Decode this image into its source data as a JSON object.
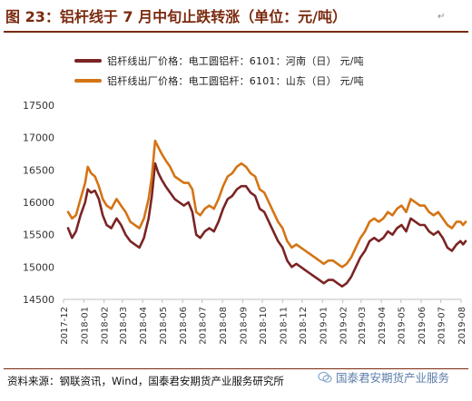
{
  "title": "图 23：铝杆线于 7 月中旬止跌转涨（单位：元/吨）",
  "source": "资料来源：钢联资讯，Wind，国泰君安期货产业服务研究所",
  "watermark": "国泰君安期货产业服务",
  "colors": {
    "henan": "#7b2424",
    "shandong": "#d47414",
    "title": "#7a2a0f"
  },
  "chart_data": {
    "type": "line",
    "title": "铝杆线于 7 月中旬止跌转涨",
    "xlabel": "",
    "ylabel": "",
    "ylim": [
      14500,
      17500
    ],
    "yticks": [
      14500,
      15000,
      15500,
      16000,
      16500,
      17000,
      17500
    ],
    "xticks": [
      "2017-12",
      "2018-01",
      "2018-02",
      "2018-03",
      "2018-04",
      "2018-05",
      "2018-06",
      "2018-07",
      "2018-08",
      "2018-09",
      "2018-10",
      "2018-11",
      "2018-12",
      "2019-01",
      "2019-02",
      "2019-03",
      "2019-04",
      "2019-05",
      "2019-06",
      "2019-07",
      "2019-08"
    ],
    "grid": false,
    "legend_position": "top-left",
    "series": [
      {
        "name": "铝杆线出厂价格：电工圆铝杆：6101：河南（日） 元/吨",
        "color": "#7b2424",
        "points": [
          [
            "2017-12-08",
            15600
          ],
          [
            "2017-12-14",
            15450
          ],
          [
            "2017-12-20",
            15550
          ],
          [
            "2017-12-27",
            15800
          ],
          [
            "2018-01-03",
            16000
          ],
          [
            "2018-01-07",
            16200
          ],
          [
            "2018-01-12",
            16150
          ],
          [
            "2018-01-18",
            16180
          ],
          [
            "2018-01-24",
            16050
          ],
          [
            "2018-01-30",
            15800
          ],
          [
            "2018-02-05",
            15650
          ],
          [
            "2018-02-12",
            15600
          ],
          [
            "2018-02-20",
            15750
          ],
          [
            "2018-02-27",
            15650
          ],
          [
            "2018-03-06",
            15500
          ],
          [
            "2018-03-13",
            15400
          ],
          [
            "2018-03-20",
            15350
          ],
          [
            "2018-03-27",
            15300
          ],
          [
            "2018-04-03",
            15450
          ],
          [
            "2018-04-10",
            15750
          ],
          [
            "2018-04-15",
            16100
          ],
          [
            "2018-04-20",
            16600
          ],
          [
            "2018-04-25",
            16450
          ],
          [
            "2018-04-30",
            16350
          ],
          [
            "2018-05-06",
            16250
          ],
          [
            "2018-05-13",
            16150
          ],
          [
            "2018-05-20",
            16050
          ],
          [
            "2018-05-27",
            16000
          ],
          [
            "2018-06-03",
            15950
          ],
          [
            "2018-06-10",
            16000
          ],
          [
            "2018-06-16",
            15850
          ],
          [
            "2018-06-22",
            15500
          ],
          [
            "2018-06-28",
            15450
          ],
          [
            "2018-07-05",
            15550
          ],
          [
            "2018-07-12",
            15600
          ],
          [
            "2018-07-19",
            15550
          ],
          [
            "2018-07-26",
            15700
          ],
          [
            "2018-08-02",
            15900
          ],
          [
            "2018-08-09",
            16050
          ],
          [
            "2018-08-16",
            16100
          ],
          [
            "2018-08-23",
            16200
          ],
          [
            "2018-08-30",
            16250
          ],
          [
            "2018-09-06",
            16250
          ],
          [
            "2018-09-13",
            16150
          ],
          [
            "2018-09-20",
            16100
          ],
          [
            "2018-09-27",
            15900
          ],
          [
            "2018-10-04",
            15850
          ],
          [
            "2018-10-11",
            15700
          ],
          [
            "2018-10-18",
            15550
          ],
          [
            "2018-10-25",
            15400
          ],
          [
            "2018-11-01",
            15300
          ],
          [
            "2018-11-08",
            15100
          ],
          [
            "2018-11-15",
            15000
          ],
          [
            "2018-11-22",
            15050
          ],
          [
            "2018-11-29",
            15000
          ],
          [
            "2018-12-06",
            14950
          ],
          [
            "2018-12-13",
            14900
          ],
          [
            "2018-12-20",
            14850
          ],
          [
            "2018-12-27",
            14800
          ],
          [
            "2019-01-03",
            14750
          ],
          [
            "2019-01-10",
            14800
          ],
          [
            "2019-01-17",
            14800
          ],
          [
            "2019-01-24",
            14750
          ],
          [
            "2019-01-31",
            14700
          ],
          [
            "2019-02-07",
            14750
          ],
          [
            "2019-02-14",
            14850
          ],
          [
            "2019-02-21",
            15000
          ],
          [
            "2019-02-28",
            15150
          ],
          [
            "2019-03-07",
            15250
          ],
          [
            "2019-03-14",
            15400
          ],
          [
            "2019-03-21",
            15450
          ],
          [
            "2019-03-28",
            15400
          ],
          [
            "2019-04-04",
            15450
          ],
          [
            "2019-04-11",
            15550
          ],
          [
            "2019-04-18",
            15500
          ],
          [
            "2019-04-25",
            15600
          ],
          [
            "2019-05-02",
            15650
          ],
          [
            "2019-05-09",
            15550
          ],
          [
            "2019-05-16",
            15750
          ],
          [
            "2019-05-23",
            15700
          ],
          [
            "2019-05-30",
            15650
          ],
          [
            "2019-06-06",
            15650
          ],
          [
            "2019-06-13",
            15550
          ],
          [
            "2019-06-20",
            15500
          ],
          [
            "2019-06-27",
            15550
          ],
          [
            "2019-07-04",
            15450
          ],
          [
            "2019-07-11",
            15300
          ],
          [
            "2019-07-18",
            15250
          ],
          [
            "2019-07-25",
            15350
          ],
          [
            "2019-07-31",
            15400
          ],
          [
            "2019-08-04",
            15350
          ],
          [
            "2019-08-08",
            15400
          ]
        ]
      },
      {
        "name": "铝杆线出厂价格：电工圆铝杆：6101：山东（日） 元/吨",
        "color": "#d47414",
        "points": [
          [
            "2017-12-08",
            15850
          ],
          [
            "2017-12-14",
            15750
          ],
          [
            "2017-12-20",
            15800
          ],
          [
            "2017-12-27",
            16050
          ],
          [
            "2018-01-03",
            16300
          ],
          [
            "2018-01-07",
            16550
          ],
          [
            "2018-01-12",
            16450
          ],
          [
            "2018-01-18",
            16400
          ],
          [
            "2018-01-24",
            16250
          ],
          [
            "2018-01-30",
            16050
          ],
          [
            "2018-02-05",
            15950
          ],
          [
            "2018-02-12",
            15900
          ],
          [
            "2018-02-20",
            16050
          ],
          [
            "2018-02-27",
            15950
          ],
          [
            "2018-03-06",
            15850
          ],
          [
            "2018-03-13",
            15700
          ],
          [
            "2018-03-20",
            15650
          ],
          [
            "2018-03-27",
            15600
          ],
          [
            "2018-04-03",
            15750
          ],
          [
            "2018-04-10",
            16050
          ],
          [
            "2018-04-15",
            16400
          ],
          [
            "2018-04-20",
            16950
          ],
          [
            "2018-04-25",
            16850
          ],
          [
            "2018-04-30",
            16750
          ],
          [
            "2018-05-06",
            16650
          ],
          [
            "2018-05-13",
            16550
          ],
          [
            "2018-05-20",
            16400
          ],
          [
            "2018-05-27",
            16350
          ],
          [
            "2018-06-03",
            16300
          ],
          [
            "2018-06-10",
            16300
          ],
          [
            "2018-06-16",
            16200
          ],
          [
            "2018-06-22",
            15850
          ],
          [
            "2018-06-28",
            15800
          ],
          [
            "2018-07-05",
            15900
          ],
          [
            "2018-07-12",
            15950
          ],
          [
            "2018-07-19",
            15900
          ],
          [
            "2018-07-26",
            16050
          ],
          [
            "2018-08-02",
            16250
          ],
          [
            "2018-08-09",
            16400
          ],
          [
            "2018-08-16",
            16450
          ],
          [
            "2018-08-23",
            16550
          ],
          [
            "2018-08-30",
            16600
          ],
          [
            "2018-09-06",
            16550
          ],
          [
            "2018-09-13",
            16450
          ],
          [
            "2018-09-20",
            16400
          ],
          [
            "2018-09-27",
            16200
          ],
          [
            "2018-10-04",
            16150
          ],
          [
            "2018-10-11",
            16000
          ],
          [
            "2018-10-18",
            15850
          ],
          [
            "2018-10-25",
            15700
          ],
          [
            "2018-11-01",
            15600
          ],
          [
            "2018-11-08",
            15400
          ],
          [
            "2018-11-15",
            15300
          ],
          [
            "2018-11-22",
            15350
          ],
          [
            "2018-11-29",
            15300
          ],
          [
            "2018-12-06",
            15250
          ],
          [
            "2018-12-13",
            15200
          ],
          [
            "2018-12-20",
            15150
          ],
          [
            "2018-12-27",
            15100
          ],
          [
            "2019-01-03",
            15050
          ],
          [
            "2019-01-10",
            15100
          ],
          [
            "2019-01-17",
            15100
          ],
          [
            "2019-01-24",
            15050
          ],
          [
            "2019-01-31",
            15000
          ],
          [
            "2019-02-07",
            15050
          ],
          [
            "2019-02-14",
            15150
          ],
          [
            "2019-02-21",
            15300
          ],
          [
            "2019-02-28",
            15450
          ],
          [
            "2019-03-07",
            15550
          ],
          [
            "2019-03-14",
            15700
          ],
          [
            "2019-03-21",
            15750
          ],
          [
            "2019-03-28",
            15700
          ],
          [
            "2019-04-04",
            15750
          ],
          [
            "2019-04-11",
            15850
          ],
          [
            "2019-04-18",
            15800
          ],
          [
            "2019-04-25",
            15900
          ],
          [
            "2019-05-02",
            15950
          ],
          [
            "2019-05-09",
            15850
          ],
          [
            "2019-05-16",
            16050
          ],
          [
            "2019-05-23",
            16000
          ],
          [
            "2019-05-30",
            15950
          ],
          [
            "2019-06-06",
            15950
          ],
          [
            "2019-06-13",
            15850
          ],
          [
            "2019-06-20",
            15800
          ],
          [
            "2019-06-27",
            15850
          ],
          [
            "2019-07-04",
            15750
          ],
          [
            "2019-07-11",
            15650
          ],
          [
            "2019-07-18",
            15600
          ],
          [
            "2019-07-25",
            15700
          ],
          [
            "2019-07-31",
            15700
          ],
          [
            "2019-08-04",
            15650
          ],
          [
            "2019-08-08",
            15700
          ]
        ]
      }
    ]
  }
}
